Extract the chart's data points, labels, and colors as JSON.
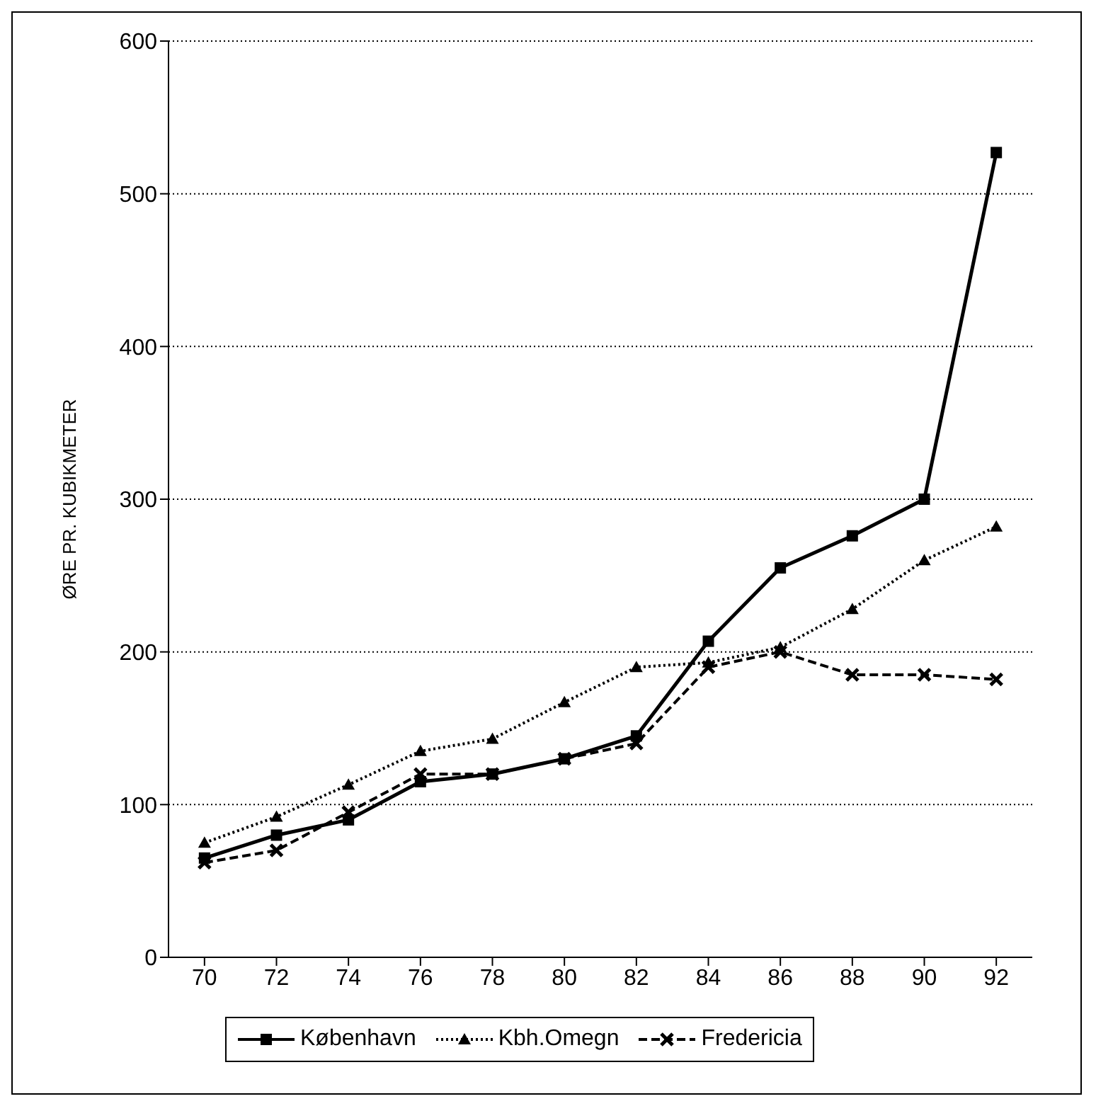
{
  "chart_data": {
    "type": "line",
    "ylabel": "ØRE PR. KUBIKMETER",
    "x": [
      70,
      72,
      74,
      76,
      78,
      80,
      82,
      84,
      86,
      88,
      90,
      92
    ],
    "xlim": [
      69,
      93
    ],
    "xticks": [
      70,
      72,
      74,
      76,
      78,
      80,
      82,
      84,
      86,
      88,
      90,
      92
    ],
    "ylim": [
      0,
      600
    ],
    "yticks": [
      0,
      100,
      200,
      300,
      400,
      500,
      600
    ],
    "grid": "y",
    "legend": "bottom",
    "series": [
      {
        "name": "København",
        "color": "#000000",
        "marker": "square",
        "line_style": "solid",
        "values": [
          65,
          80,
          90,
          115,
          120,
          130,
          145,
          207,
          255,
          276,
          300,
          527
        ]
      },
      {
        "name": "Kbh.Omegn",
        "color": "#000000",
        "marker": "triangle",
        "line_style": "dotted",
        "values": [
          75,
          92,
          113,
          135,
          143,
          167,
          190,
          193,
          203,
          228,
          260,
          282
        ]
      },
      {
        "name": "Fredericia",
        "color": "#000000",
        "marker": "cross",
        "line_style": "dashed",
        "values": [
          62,
          70,
          95,
          120,
          120,
          130,
          140,
          190,
          200,
          185,
          185,
          182
        ]
      }
    ]
  }
}
